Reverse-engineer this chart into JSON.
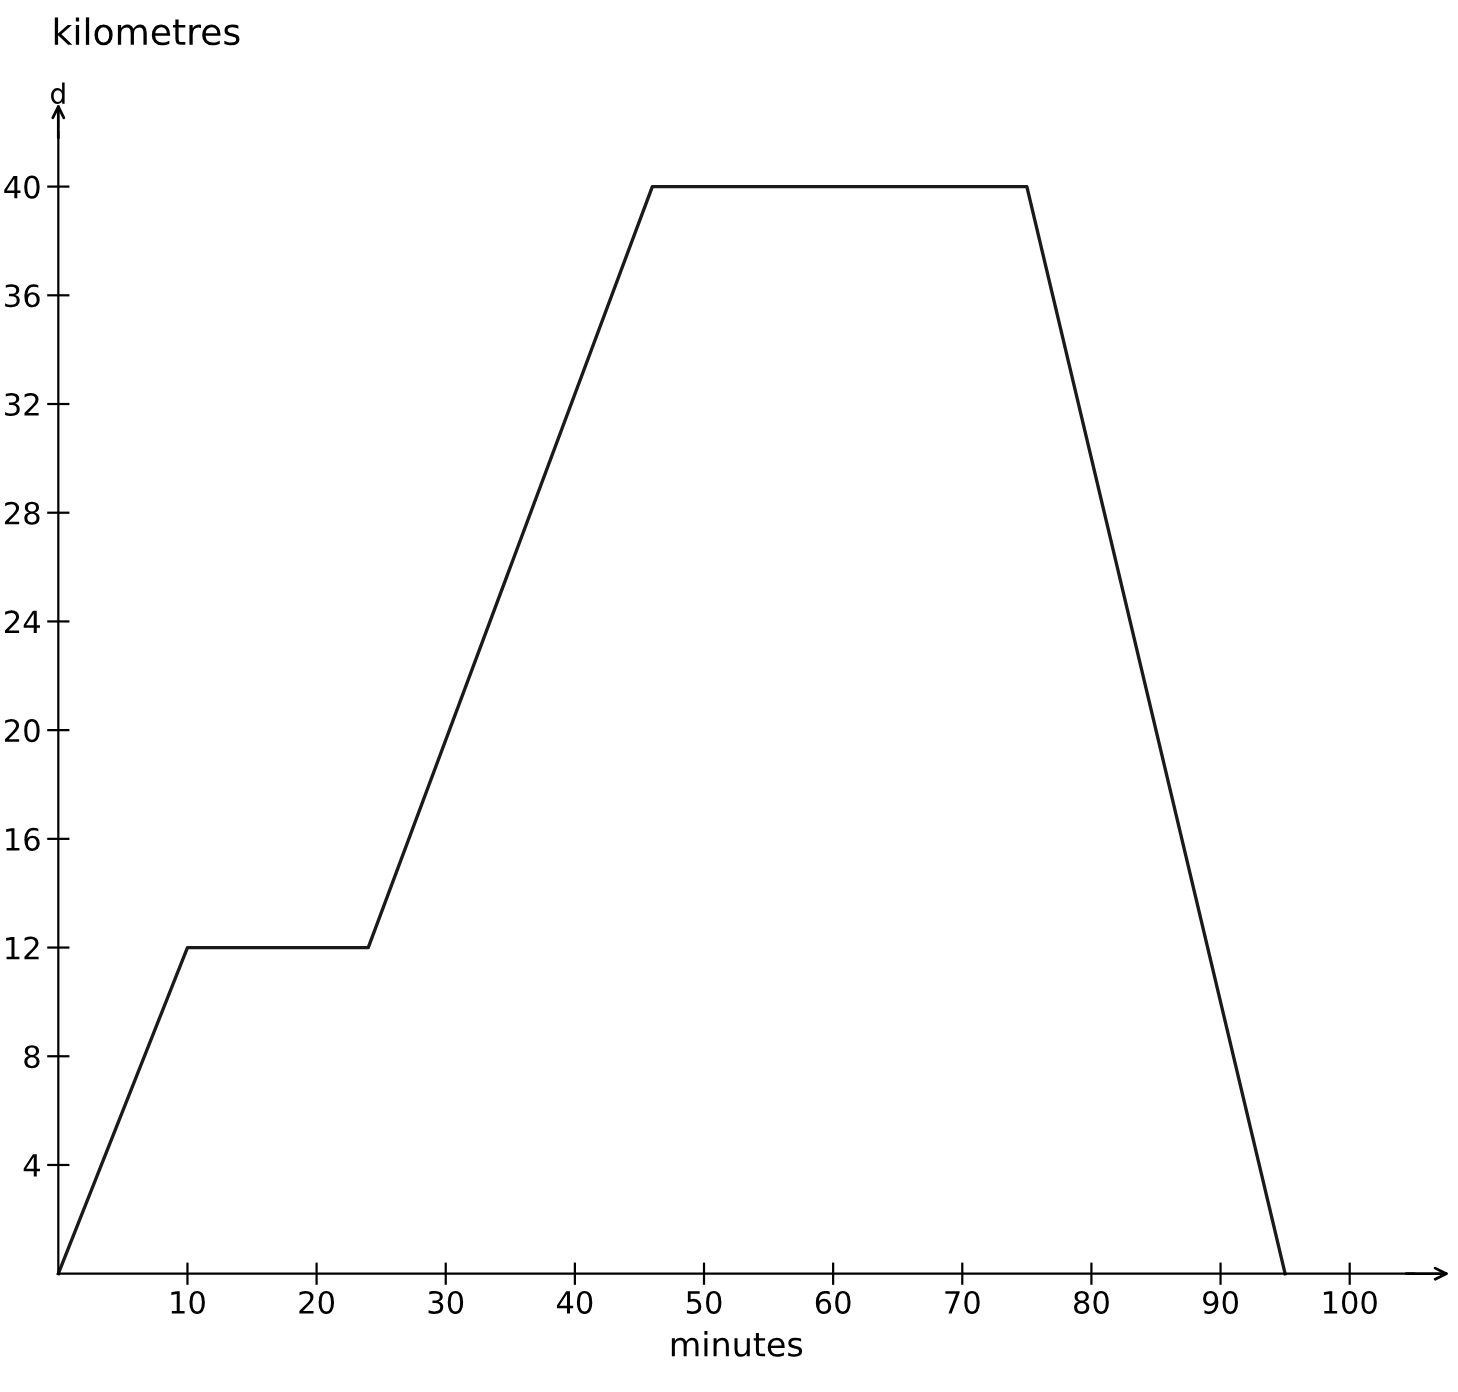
{
  "chart_data": {
    "type": "line",
    "xlabel": "minutes",
    "ylabel": "d",
    "annotations": [
      "kilometres"
    ],
    "x": [
      0,
      10,
      24,
      46,
      75,
      95
    ],
    "series": [
      {
        "color": "#1a1a1a",
        "values": [
          0,
          12,
          12,
          40,
          40,
          0
        ]
      }
    ],
    "xlim": [
      0,
      105
    ],
    "ylim": [
      0,
      42
    ],
    "xticks": [
      10,
      20,
      30,
      40,
      50,
      60,
      70,
      80,
      90,
      100
    ],
    "yticks": [
      4,
      8,
      12,
      16,
      20,
      24,
      28,
      32,
      36,
      40
    ],
    "grid": false,
    "legend": false,
    "marker": "none",
    "line_style": "solid"
  }
}
